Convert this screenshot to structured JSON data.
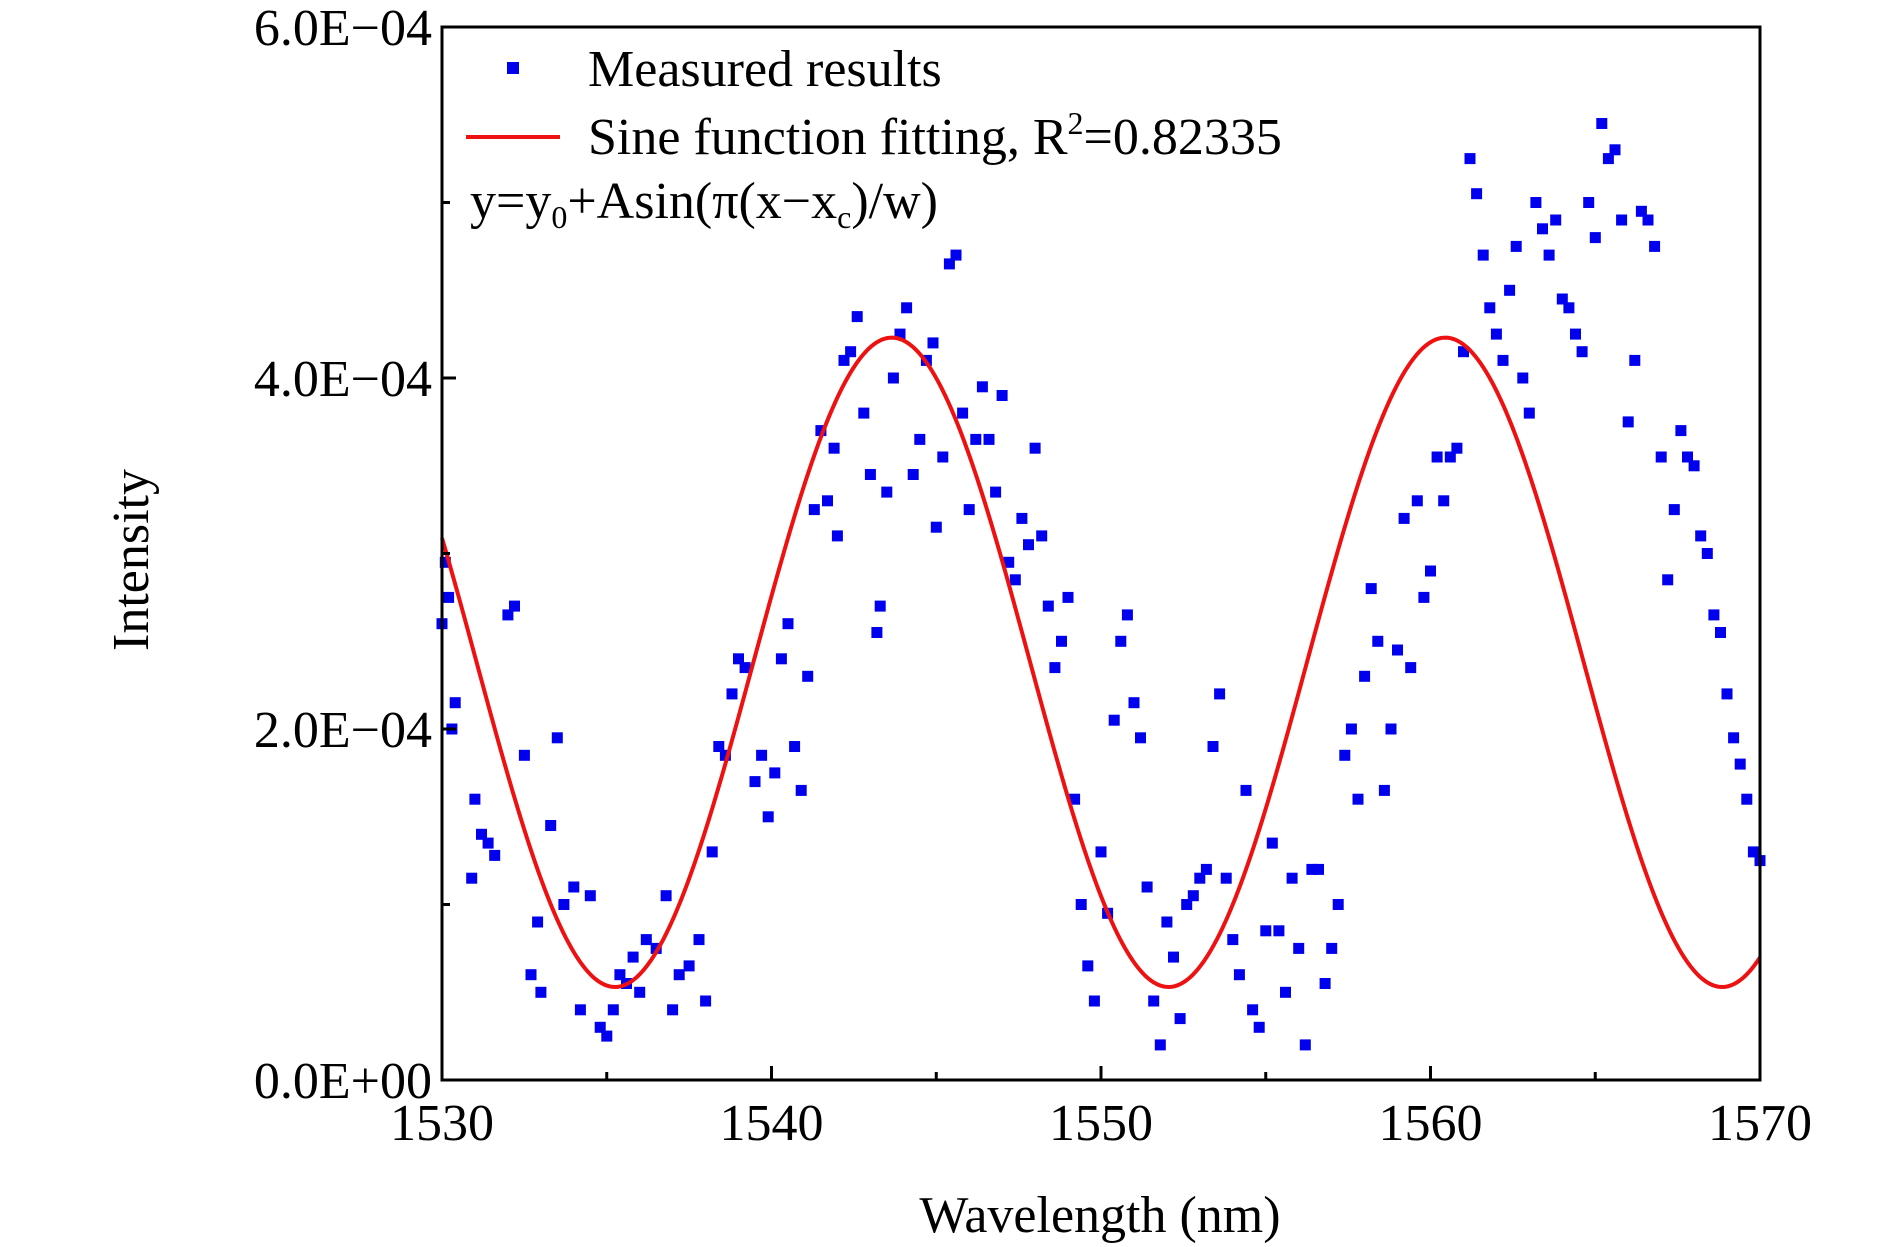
{
  "chart_data": {
    "type": "scatter",
    "title": "",
    "xlabel": "Wavelength (nm)",
    "ylabel": "Intensity",
    "xlim": [
      1530,
      1570
    ],
    "ylim": [
      0,
      0.0006
    ],
    "x_ticks": [
      1530,
      1540,
      1550,
      1560,
      1570
    ],
    "x_tick_labels": [
      "1530",
      "1540",
      "1550",
      "1560",
      "1570"
    ],
    "y_ticks": [
      0,
      0.0002,
      0.0004,
      0.0006
    ],
    "y_tick_labels": [
      "0.0E+00",
      "2.0E−04",
      "4.0E−04",
      "6.0E−04"
    ],
    "grid": false,
    "legend_position": "top-left",
    "colors": {
      "measured": "#0000ee",
      "fit": "#ee1111"
    },
    "series": [
      {
        "name": "Measured results",
        "kind": "scatter",
        "points": [
          [
            1530.1,
            0.000295
          ],
          [
            1530.2,
            0.000275
          ],
          [
            1530.4,
            0.000215
          ],
          [
            1530.3,
            0.0002
          ],
          [
            1530.0,
            0.00026
          ],
          [
            1530.9,
            0.000115
          ],
          [
            1531.0,
            0.00016
          ],
          [
            1531.2,
            0.00014
          ],
          [
            1531.4,
            0.000135
          ],
          [
            1531.6,
            0.000128
          ],
          [
            1532.0,
            0.000265
          ],
          [
            1532.2,
            0.00027
          ],
          [
            1532.5,
            0.000185
          ],
          [
            1532.7,
            6e-05
          ],
          [
            1532.9,
            9e-05
          ],
          [
            1533.0,
            5e-05
          ],
          [
            1533.3,
            0.000145
          ],
          [
            1533.5,
            0.000195
          ],
          [
            1533.7,
            0.0001
          ],
          [
            1534.0,
            0.00011
          ],
          [
            1534.2,
            4e-05
          ],
          [
            1534.5,
            0.000105
          ],
          [
            1534.8,
            3e-05
          ],
          [
            1535.0,
            2.5e-05
          ],
          [
            1535.2,
            4e-05
          ],
          [
            1535.4,
            6e-05
          ],
          [
            1535.6,
            5.5e-05
          ],
          [
            1535.8,
            7e-05
          ],
          [
            1536.0,
            5e-05
          ],
          [
            1536.2,
            8e-05
          ],
          [
            1536.5,
            7.5e-05
          ],
          [
            1536.8,
            0.000105
          ],
          [
            1537.0,
            4e-05
          ],
          [
            1537.2,
            6e-05
          ],
          [
            1537.5,
            6.5e-05
          ],
          [
            1537.8,
            8e-05
          ],
          [
            1538.0,
            4.5e-05
          ],
          [
            1538.2,
            0.00013
          ],
          [
            1538.4,
            0.00019
          ],
          [
            1538.6,
            0.000185
          ],
          [
            1538.8,
            0.00022
          ],
          [
            1539.0,
            0.00024
          ],
          [
            1539.2,
            0.000235
          ],
          [
            1539.5,
            0.00017
          ],
          [
            1539.7,
            0.000185
          ],
          [
            1539.9,
            0.00015
          ],
          [
            1540.1,
            0.000175
          ],
          [
            1540.3,
            0.00024
          ],
          [
            1540.5,
            0.00026
          ],
          [
            1540.7,
            0.00019
          ],
          [
            1540.9,
            0.000165
          ],
          [
            1541.1,
            0.00023
          ],
          [
            1541.3,
            0.000325
          ],
          [
            1541.5,
            0.00037
          ],
          [
            1541.7,
            0.00033
          ],
          [
            1541.9,
            0.00036
          ],
          [
            1542.0,
            0.00031
          ],
          [
            1542.2,
            0.00041
          ],
          [
            1542.4,
            0.000415
          ],
          [
            1542.6,
            0.000435
          ],
          [
            1542.8,
            0.00038
          ],
          [
            1543.0,
            0.000345
          ],
          [
            1543.2,
            0.000255
          ],
          [
            1543.3,
            0.00027
          ],
          [
            1543.5,
            0.000335
          ],
          [
            1543.7,
            0.0004
          ],
          [
            1543.9,
            0.000425
          ],
          [
            1544.1,
            0.00044
          ],
          [
            1544.3,
            0.000345
          ],
          [
            1544.5,
            0.000365
          ],
          [
            1544.7,
            0.00041
          ],
          [
            1544.9,
            0.00042
          ],
          [
            1545.0,
            0.000315
          ],
          [
            1545.2,
            0.000355
          ],
          [
            1545.4,
            0.000465
          ],
          [
            1545.6,
            0.00047
          ],
          [
            1545.8,
            0.00038
          ],
          [
            1546.0,
            0.000325
          ],
          [
            1546.2,
            0.000365
          ],
          [
            1546.4,
            0.000395
          ],
          [
            1546.6,
            0.000365
          ],
          [
            1546.8,
            0.000335
          ],
          [
            1547.0,
            0.00039
          ],
          [
            1547.2,
            0.000295
          ],
          [
            1547.4,
            0.000285
          ],
          [
            1547.6,
            0.00032
          ],
          [
            1547.8,
            0.000305
          ],
          [
            1548.0,
            0.00036
          ],
          [
            1548.2,
            0.00031
          ],
          [
            1548.4,
            0.00027
          ],
          [
            1548.6,
            0.000235
          ],
          [
            1548.8,
            0.00025
          ],
          [
            1549.0,
            0.000275
          ],
          [
            1549.2,
            0.00016
          ],
          [
            1549.4,
            0.0001
          ],
          [
            1549.6,
            6.5e-05
          ],
          [
            1549.8,
            4.5e-05
          ],
          [
            1550.0,
            0.00013
          ],
          [
            1550.2,
            9.5e-05
          ],
          [
            1550.4,
            0.000205
          ],
          [
            1550.6,
            0.00025
          ],
          [
            1550.8,
            0.000265
          ],
          [
            1551.0,
            0.000215
          ],
          [
            1551.2,
            0.000195
          ],
          [
            1551.4,
            0.00011
          ],
          [
            1551.6,
            4.5e-05
          ],
          [
            1551.8,
            2e-05
          ],
          [
            1552.0,
            9e-05
          ],
          [
            1552.2,
            7e-05
          ],
          [
            1552.4,
            3.5e-05
          ],
          [
            1552.6,
            0.0001
          ],
          [
            1552.8,
            0.000105
          ],
          [
            1553.0,
            0.000115
          ],
          [
            1553.2,
            0.00012
          ],
          [
            1553.4,
            0.00019
          ],
          [
            1553.6,
            0.00022
          ],
          [
            1553.8,
            0.000115
          ],
          [
            1554.0,
            8e-05
          ],
          [
            1554.2,
            6e-05
          ],
          [
            1554.4,
            0.000165
          ],
          [
            1554.6,
            4e-05
          ],
          [
            1554.8,
            3e-05
          ],
          [
            1555.0,
            8.5e-05
          ],
          [
            1555.2,
            0.000135
          ],
          [
            1555.4,
            8.5e-05
          ],
          [
            1555.6,
            5e-05
          ],
          [
            1555.8,
            0.000115
          ],
          [
            1556.0,
            7.5e-05
          ],
          [
            1556.2,
            2e-05
          ],
          [
            1556.4,
            0.00012
          ],
          [
            1556.6,
            0.00012
          ],
          [
            1556.8,
            5.5e-05
          ],
          [
            1557.0,
            7.5e-05
          ],
          [
            1557.2,
            0.0001
          ],
          [
            1557.4,
            0.000185
          ],
          [
            1557.6,
            0.0002
          ],
          [
            1557.8,
            0.00016
          ],
          [
            1558.0,
            0.00023
          ],
          [
            1558.2,
            0.00028
          ],
          [
            1558.4,
            0.00025
          ],
          [
            1558.6,
            0.000165
          ],
          [
            1558.8,
            0.0002
          ],
          [
            1559.0,
            0.000245
          ],
          [
            1559.2,
            0.00032
          ],
          [
            1559.4,
            0.000235
          ],
          [
            1559.6,
            0.00033
          ],
          [
            1559.8,
            0.000275
          ],
          [
            1560.0,
            0.00029
          ],
          [
            1560.2,
            0.000355
          ],
          [
            1560.4,
            0.00033
          ],
          [
            1560.6,
            0.000355
          ],
          [
            1560.8,
            0.00036
          ],
          [
            1561.0,
            0.000415
          ],
          [
            1561.2,
            0.000525
          ],
          [
            1561.4,
            0.000505
          ],
          [
            1561.6,
            0.00047
          ],
          [
            1561.8,
            0.00044
          ],
          [
            1562.0,
            0.000425
          ],
          [
            1562.2,
            0.00041
          ],
          [
            1562.4,
            0.00045
          ],
          [
            1562.6,
            0.000475
          ],
          [
            1562.8,
            0.0004
          ],
          [
            1563.0,
            0.00038
          ],
          [
            1563.2,
            0.0005
          ],
          [
            1563.4,
            0.000485
          ],
          [
            1563.6,
            0.00047
          ],
          [
            1563.8,
            0.00049
          ],
          [
            1564.0,
            0.000445
          ],
          [
            1564.2,
            0.00044
          ],
          [
            1564.4,
            0.000425
          ],
          [
            1564.6,
            0.000415
          ],
          [
            1564.8,
            0.0005
          ],
          [
            1565.0,
            0.00048
          ],
          [
            1565.2,
            0.000545
          ],
          [
            1565.4,
            0.000525
          ],
          [
            1565.6,
            0.00053
          ],
          [
            1565.8,
            0.00049
          ],
          [
            1566.0,
            0.000375
          ],
          [
            1566.2,
            0.00041
          ],
          [
            1566.4,
            0.000495
          ],
          [
            1566.6,
            0.00049
          ],
          [
            1566.8,
            0.000475
          ],
          [
            1567.0,
            0.000355
          ],
          [
            1567.2,
            0.000285
          ],
          [
            1567.4,
            0.000325
          ],
          [
            1567.6,
            0.00037
          ],
          [
            1567.8,
            0.000355
          ],
          [
            1568.0,
            0.00035
          ],
          [
            1568.2,
            0.00031
          ],
          [
            1568.4,
            0.0003
          ],
          [
            1568.6,
            0.000265
          ],
          [
            1568.8,
            0.000255
          ],
          [
            1569.0,
            0.00022
          ],
          [
            1569.2,
            0.000195
          ],
          [
            1569.4,
            0.00018
          ],
          [
            1569.6,
            0.00016
          ],
          [
            1569.8,
            0.00013
          ],
          [
            1570.0,
            0.000125
          ]
        ]
      },
      {
        "name": "Sine function fitting, R²=0.82335",
        "kind": "line",
        "y0": 0.000238,
        "A": 0.000185,
        "xc": 1539.45,
        "w": 8.4
      }
    ],
    "legend": {
      "measured_label": "Measured results",
      "fit_label_prefix": "Sine function fitting, R",
      "fit_label_sup": "2",
      "fit_label_suffix": "=0.82335",
      "formula_parts": [
        "y=y",
        "0",
        "+Asin(π(x−x",
        "c",
        ")/w)"
      ]
    }
  }
}
